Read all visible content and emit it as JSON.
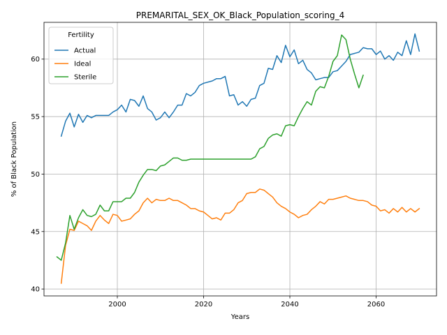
{
  "chart_data": {
    "type": "line",
    "title": "PREMARITAL_SEX_OK_Black_Population_scoring_4",
    "xlabel": "Years",
    "ylabel": "% of Black Population",
    "xlim": [
      1983,
      2074
    ],
    "ylim": [
      39.4,
      63.2
    ],
    "xticks": [
      2000,
      2020,
      2040,
      2060
    ],
    "yticks": [
      40,
      45,
      50,
      55,
      60
    ],
    "grid": true,
    "legend": {
      "title": "Fertility",
      "placement": "top-left"
    },
    "series": [
      {
        "name": "Actual",
        "color": "#1f77b4",
        "x": [
          1987,
          1988,
          1989,
          1990,
          1991,
          1992,
          1993,
          1994,
          1995,
          1996,
          1997,
          1998,
          1999,
          2000,
          2001,
          2002,
          2003,
          2004,
          2005,
          2006,
          2007,
          2008,
          2009,
          2010,
          2011,
          2012,
          2013,
          2014,
          2015,
          2016,
          2017,
          2018,
          2019,
          2020,
          2021,
          2022,
          2023,
          2024,
          2025,
          2026,
          2027,
          2028,
          2029,
          2030,
          2031,
          2032,
          2033,
          2034,
          2035,
          2036,
          2037,
          2038,
          2039,
          2040,
          2041,
          2042,
          2043,
          2044,
          2045,
          2046,
          2047,
          2048,
          2049,
          2050,
          2051,
          2052,
          2053,
          2054,
          2055,
          2056,
          2057,
          2058,
          2059,
          2060,
          2061,
          2062,
          2063,
          2064,
          2065,
          2066,
          2067,
          2068,
          2069,
          2070
        ],
        "values": [
          53.3,
          54.6,
          55.3,
          54.1,
          55.2,
          54.5,
          55.1,
          54.9,
          55.1,
          55.1,
          55.1,
          55.1,
          55.4,
          55.6,
          56.0,
          55.4,
          56.5,
          56.4,
          55.9,
          56.8,
          55.7,
          55.4,
          54.7,
          54.9,
          55.4,
          54.9,
          55.4,
          56.0,
          56.0,
          57.0,
          56.8,
          57.1,
          57.7,
          57.9,
          58.0,
          58.1,
          58.3,
          58.3,
          58.5,
          56.8,
          56.9,
          56.0,
          56.3,
          55.9,
          56.5,
          56.6,
          57.7,
          57.9,
          59.2,
          59.1,
          60.3,
          59.7,
          61.2,
          60.2,
          60.8,
          59.6,
          59.9,
          59.1,
          58.8,
          58.2,
          58.3,
          58.4,
          58.4,
          58.9,
          59.0,
          59.4,
          59.8,
          60.4,
          60.5,
          60.6,
          61.0,
          60.9,
          60.9,
          60.4,
          60.7,
          60.0,
          60.3,
          59.9,
          60.6,
          60.3,
          61.6,
          60.4,
          62.2,
          60.7
        ]
      },
      {
        "name": "Ideal",
        "color": "#ff7f0e",
        "x": [
          1987,
          1988,
          1989,
          1990,
          1991,
          1992,
          1993,
          1994,
          1995,
          1996,
          1997,
          1998,
          1999,
          2000,
          2001,
          2002,
          2003,
          2004,
          2005,
          2006,
          2007,
          2008,
          2009,
          2010,
          2011,
          2012,
          2013,
          2014,
          2015,
          2016,
          2017,
          2018,
          2019,
          2020,
          2021,
          2022,
          2023,
          2024,
          2025,
          2026,
          2027,
          2028,
          2029,
          2030,
          2031,
          2032,
          2033,
          2034,
          2035,
          2036,
          2037,
          2038,
          2039,
          2040,
          2041,
          2042,
          2043,
          2044,
          2045,
          2046,
          2047,
          2048,
          2049,
          2050,
          2051,
          2052,
          2053,
          2054,
          2055,
          2056,
          2057,
          2058,
          2059,
          2060,
          2061,
          2062,
          2063,
          2064,
          2065,
          2066,
          2067,
          2068,
          2069,
          2070
        ],
        "values": [
          40.5,
          43.8,
          45.2,
          45.1,
          45.9,
          45.7,
          45.5,
          45.1,
          45.9,
          46.4,
          46.0,
          45.7,
          46.5,
          46.4,
          45.9,
          46.0,
          46.1,
          46.5,
          46.8,
          47.5,
          47.9,
          47.5,
          47.8,
          47.7,
          47.7,
          47.9,
          47.7,
          47.7,
          47.5,
          47.3,
          47.0,
          47.0,
          46.8,
          46.7,
          46.4,
          46.1,
          46.2,
          46.0,
          46.6,
          46.6,
          46.9,
          47.5,
          47.7,
          48.3,
          48.4,
          48.4,
          48.7,
          48.6,
          48.3,
          48.0,
          47.5,
          47.2,
          47.0,
          46.7,
          46.5,
          46.2,
          46.4,
          46.5,
          46.9,
          47.2,
          47.6,
          47.4,
          47.8,
          47.8,
          47.9,
          48.0,
          48.1,
          47.9,
          47.8,
          47.7,
          47.7,
          47.6,
          47.3,
          47.2,
          46.8,
          46.9,
          46.6,
          47.0,
          46.7,
          47.1,
          46.7,
          47.0,
          46.7,
          47.0
        ]
      },
      {
        "name": "Sterile",
        "color": "#2ca02c",
        "x": [
          1986,
          1987,
          1988,
          1989,
          1990,
          1991,
          1992,
          1993,
          1994,
          1995,
          1996,
          1997,
          1998,
          1999,
          2000,
          2001,
          2002,
          2003,
          2004,
          2005,
          2006,
          2007,
          2008,
          2009,
          2010,
          2011,
          2012,
          2013,
          2014,
          2015,
          2016,
          2017,
          2018,
          2019,
          2020,
          2021,
          2022,
          2023,
          2024,
          2025,
          2026,
          2027,
          2028,
          2029,
          2030,
          2031,
          2032,
          2033,
          2034,
          2035,
          2036,
          2037,
          2038,
          2039,
          2040,
          2041,
          2042,
          2043,
          2044,
          2045,
          2046,
          2047,
          2048,
          2049,
          2050,
          2051,
          2052,
          2053,
          2054,
          2055,
          2056,
          2057
        ],
        "values": [
          42.8,
          42.5,
          44.0,
          46.4,
          45.2,
          46.2,
          46.9,
          46.4,
          46.3,
          46.5,
          47.3,
          46.8,
          46.8,
          47.6,
          47.6,
          47.6,
          47.9,
          47.9,
          48.4,
          49.3,
          49.9,
          50.4,
          50.4,
          50.3,
          50.7,
          50.8,
          51.1,
          51.4,
          51.4,
          51.2,
          51.2,
          51.3,
          51.3,
          51.3,
          51.3,
          51.3,
          51.3,
          51.3,
          51.3,
          51.3,
          51.3,
          51.3,
          51.3,
          51.3,
          51.3,
          51.3,
          51.5,
          52.2,
          52.4,
          53.1,
          53.4,
          53.5,
          53.3,
          54.2,
          54.3,
          54.2,
          55.0,
          55.7,
          56.3,
          56.0,
          57.2,
          57.6,
          57.5,
          58.5,
          59.8,
          60.3,
          62.1,
          61.7,
          60.0,
          58.7,
          57.5,
          58.6
        ]
      }
    ]
  }
}
